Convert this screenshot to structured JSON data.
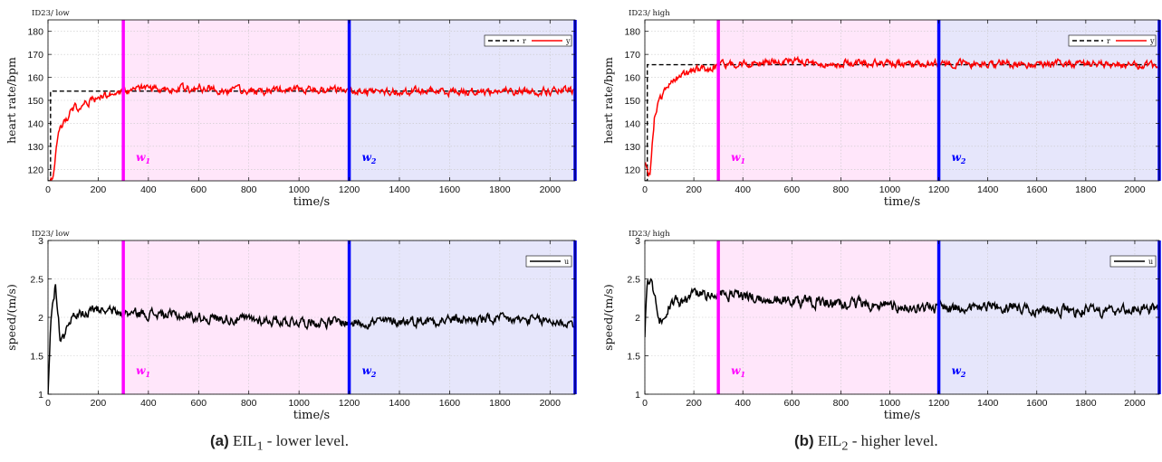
{
  "panels": [
    {
      "id": "a",
      "caption_tag": "(a)",
      "caption_base": "EIL",
      "caption_sub": "1",
      "caption_rest": " - lower level.",
      "ref": 154,
      "hr_noise": 1.35,
      "sp_level": 2.0,
      "sp_noise": 0.055,
      "sp_peak": 2.45
    },
    {
      "id": "b",
      "caption_tag": "(b)",
      "caption_base": "EIL",
      "caption_sub": "2",
      "caption_rest": " - higher level.",
      "ref": 165.5,
      "hr_noise": 1.3,
      "sp_level": 2.2,
      "sp_noise": 0.06,
      "sp_peak": 2.55
    }
  ],
  "annotations": {
    "w1_base": "w",
    "w1_sub": "1",
    "w2_base": "w",
    "w2_sub": "2",
    "w1_color": "#ff00ff",
    "w2_color": "#0000ff",
    "w1_fill": "#ffe6fa",
    "w2_fill": "#e6e6fb"
  },
  "chart_data": [
    {
      "type": "line",
      "title": "ID23/ low",
      "xlabel": "time/s",
      "ylabel": "heart rate/bpm",
      "xlim": [
        0,
        2100
      ],
      "ylim": [
        115,
        185
      ],
      "xticks": [
        0,
        200,
        400,
        600,
        800,
        1000,
        1200,
        1400,
        1600,
        1800,
        2000
      ],
      "yticks": [
        120,
        130,
        140,
        150,
        160,
        170,
        180
      ],
      "grid": true,
      "legend_position": "top-right",
      "vlines": [
        300,
        1200,
        2100
      ],
      "series": [
        {
          "name": "r",
          "color": "#000000",
          "style": "dashed",
          "x": [
            0,
            10,
            10,
            2100
          ],
          "y": [
            115,
            115,
            154,
            154
          ]
        },
        {
          "name": "y",
          "color": "#ff0000",
          "style": "solid",
          "x": [
            0,
            20,
            40,
            60,
            100,
            150,
            200,
            250,
            300,
            400,
            600,
            800,
            1000,
            1200,
            1400,
            1600,
            1800,
            2000,
            2100
          ],
          "y": [
            113,
            118,
            136,
            140,
            146,
            149,
            151,
            153,
            154,
            155,
            155,
            154,
            155,
            154,
            154,
            154,
            154,
            154,
            154
          ]
        }
      ]
    },
    {
      "type": "line",
      "title": "ID23/ low",
      "xlabel": "time/s",
      "ylabel": "speed/(m/s)",
      "xlim": [
        0,
        2100
      ],
      "ylim": [
        1,
        3
      ],
      "xticks": [
        0,
        200,
        400,
        600,
        800,
        1000,
        1200,
        1400,
        1600,
        1800,
        2000
      ],
      "yticks": [
        1,
        1.5,
        2,
        2.5,
        3
      ],
      "grid": true,
      "legend_position": "top-right",
      "vlines": [
        300,
        1200,
        2100
      ],
      "series": [
        {
          "name": "u",
          "color": "#000000",
          "style": "solid",
          "x": [
            0,
            10,
            30,
            50,
            100,
            200,
            300,
            400,
            600,
            800,
            1000,
            1200,
            1400,
            1600,
            1800,
            2000,
            2100
          ],
          "y": [
            1.0,
            1.9,
            2.45,
            1.65,
            2.0,
            2.1,
            2.05,
            2.05,
            2.0,
            1.97,
            1.95,
            1.93,
            1.95,
            1.97,
            1.97,
            1.95,
            1.92
          ]
        }
      ]
    },
    {
      "type": "line",
      "title": "ID23/ high",
      "xlabel": "time/s",
      "ylabel": "heart rate/bpm",
      "xlim": [
        0,
        2100
      ],
      "ylim": [
        115,
        185
      ],
      "xticks": [
        0,
        200,
        400,
        600,
        800,
        1000,
        1200,
        1400,
        1600,
        1800,
        2000
      ],
      "yticks": [
        120,
        130,
        140,
        150,
        160,
        170,
        180
      ],
      "grid": true,
      "legend_position": "top-right",
      "vlines": [
        300,
        1200,
        2100
      ],
      "series": [
        {
          "name": "r",
          "color": "#000000",
          "style": "dashed",
          "x": [
            0,
            10,
            10,
            2100
          ],
          "y": [
            115,
            115,
            165.5,
            165.5
          ]
        },
        {
          "name": "y",
          "color": "#ff0000",
          "style": "solid",
          "x": [
            0,
            20,
            40,
            60,
            100,
            150,
            200,
            250,
            300,
            400,
            600,
            800,
            1000,
            1200,
            1400,
            1600,
            1800,
            2000,
            2100
          ],
          "y": [
            122,
            118,
            143,
            150,
            157,
            161,
            163,
            164,
            165,
            166,
            167,
            166,
            166,
            166,
            166,
            166,
            166,
            165,
            165
          ]
        }
      ]
    },
    {
      "type": "line",
      "title": "ID23/ high",
      "xlabel": "time/s",
      "ylabel": "speed/(m/s)",
      "xlim": [
        0,
        2100
      ],
      "ylim": [
        1,
        3
      ],
      "xticks": [
        0,
        200,
        400,
        600,
        800,
        1000,
        1200,
        1400,
        1600,
        1800,
        2000
      ],
      "yticks": [
        1,
        1.5,
        2,
        2.5,
        3
      ],
      "grid": true,
      "legend_position": "top-right",
      "vlines": [
        300,
        1200,
        2100
      ],
      "series": [
        {
          "name": "u",
          "color": "#000000",
          "style": "solid",
          "x": [
            0,
            10,
            30,
            60,
            100,
            200,
            300,
            400,
            600,
            800,
            1000,
            1200,
            1400,
            1600,
            1800,
            2000,
            2100
          ],
          "y": [
            1.8,
            2.5,
            2.45,
            1.95,
            2.15,
            2.3,
            2.3,
            2.27,
            2.22,
            2.18,
            2.15,
            2.12,
            2.15,
            2.1,
            2.08,
            2.1,
            2.12
          ]
        }
      ]
    }
  ]
}
